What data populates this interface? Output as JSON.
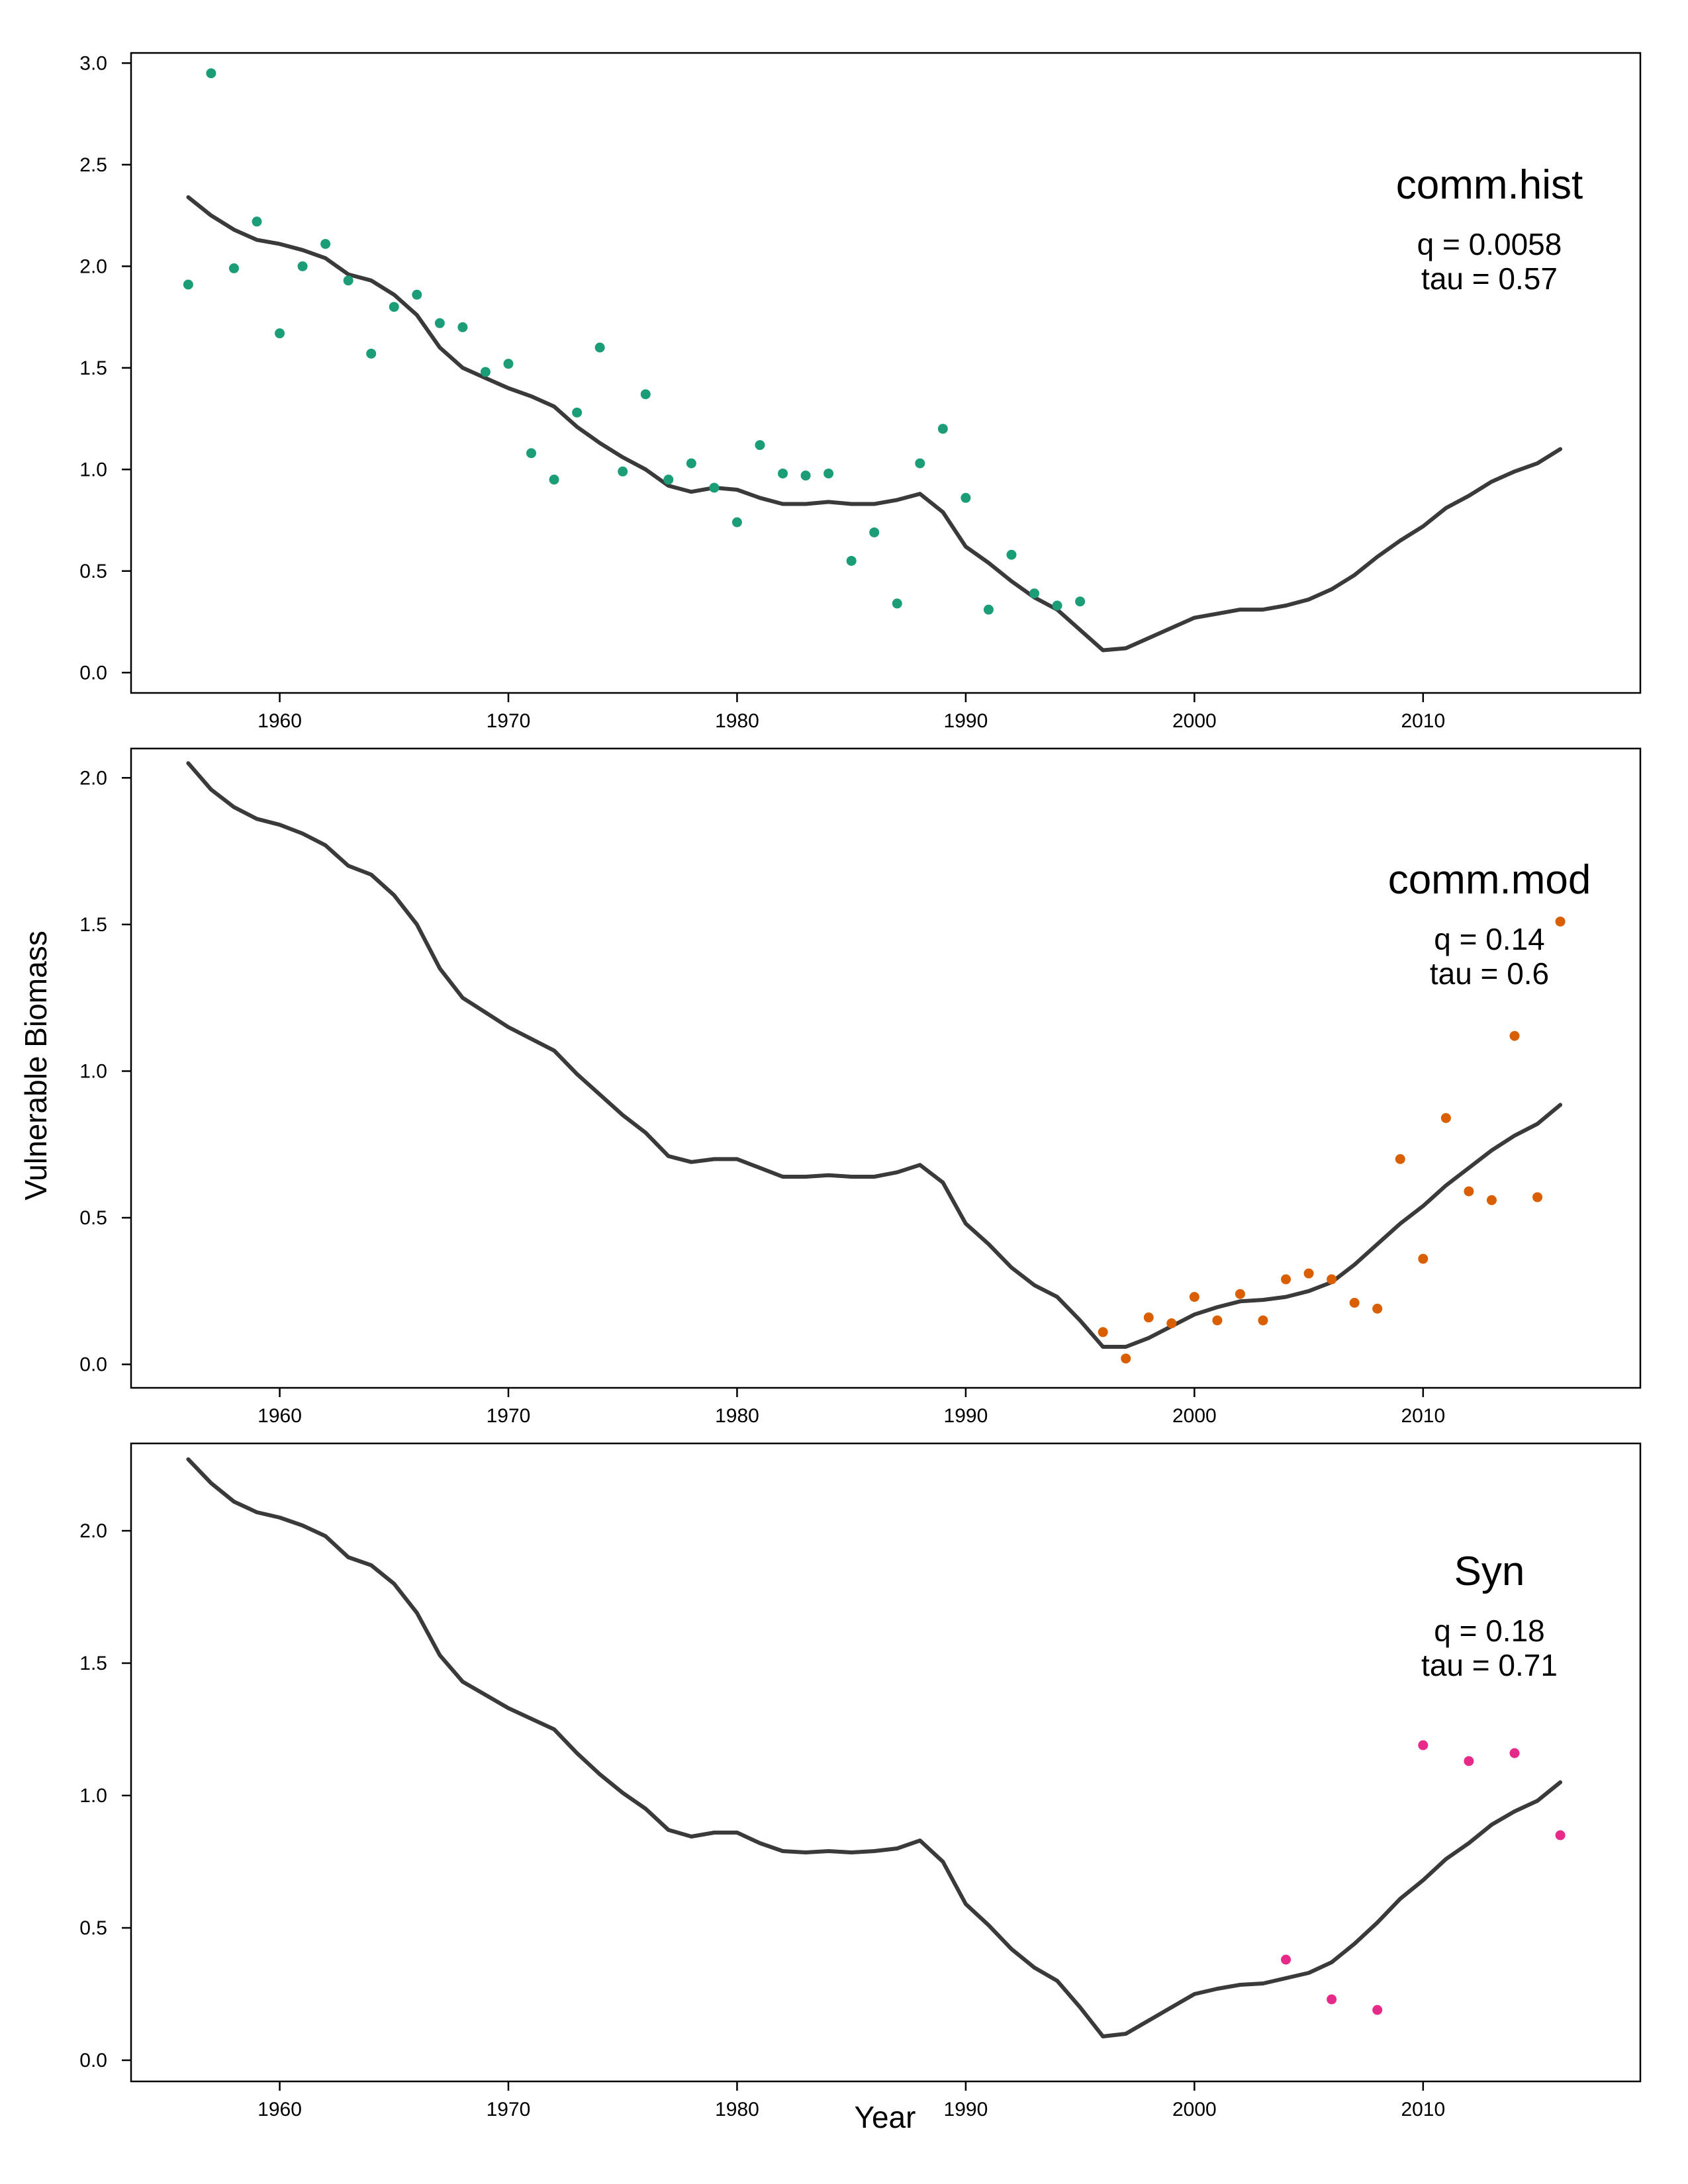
{
  "axis_titles": {
    "xlabel": "Year",
    "ylabel": "Vulnerable Biomass"
  },
  "chart_data": [
    {
      "type": "line",
      "title": "comm.hist",
      "stats": [
        "q = 0.0058",
        "tau = 0.57"
      ],
      "xlim": [
        1953.5,
        2019.5
      ],
      "ylim": [
        -0.1,
        3.05
      ],
      "xticks": [
        1960,
        1970,
        1980,
        1990,
        2000,
        2010
      ],
      "yticks": [
        0.0,
        0.5,
        1.0,
        1.5,
        2.0,
        2.5,
        3.0
      ],
      "ytick_labels": [
        "0.0",
        "0.5",
        "1.0",
        "1.5",
        "2.0",
        "2.5",
        "3.0"
      ],
      "point_color": "#1b9e77",
      "line_color": "#3a3a3a",
      "line": {
        "x": [
          1956,
          1957,
          1958,
          1959,
          1960,
          1961,
          1962,
          1963,
          1964,
          1965,
          1966,
          1967,
          1968,
          1969,
          1970,
          1971,
          1972,
          1973,
          1974,
          1975,
          1976,
          1977,
          1978,
          1979,
          1980,
          1981,
          1982,
          1983,
          1984,
          1985,
          1986,
          1987,
          1988,
          1989,
          1990,
          1991,
          1992,
          1993,
          1994,
          1995,
          1996,
          1997,
          1998,
          1999,
          2000,
          2001,
          2002,
          2003,
          2004,
          2005,
          2006,
          2007,
          2008,
          2009,
          2010,
          2011,
          2012,
          2013,
          2014,
          2015,
          2016
        ],
        "y": [
          2.34,
          2.25,
          2.18,
          2.13,
          2.11,
          2.08,
          2.04,
          1.96,
          1.93,
          1.86,
          1.76,
          1.6,
          1.5,
          1.45,
          1.4,
          1.36,
          1.31,
          1.21,
          1.13,
          1.06,
          1.0,
          0.92,
          0.89,
          0.91,
          0.9,
          0.86,
          0.83,
          0.83,
          0.84,
          0.83,
          0.83,
          0.85,
          0.88,
          0.79,
          0.62,
          0.54,
          0.45,
          0.37,
          0.31,
          0.21,
          0.11,
          0.12,
          0.17,
          0.22,
          0.27,
          0.29,
          0.31,
          0.31,
          0.33,
          0.36,
          0.41,
          0.48,
          0.57,
          0.65,
          0.72,
          0.81,
          0.87,
          0.94,
          0.99,
          1.03,
          1.1
        ]
      },
      "points": {
        "x": [
          1956,
          1957,
          1958,
          1959,
          1960,
          1961,
          1962,
          1963,
          1964,
          1965,
          1966,
          1967,
          1968,
          1969,
          1970,
          1971,
          1972,
          1973,
          1974,
          1975,
          1976,
          1977,
          1978,
          1979,
          1980,
          1981,
          1982,
          1983,
          1984,
          1985,
          1986,
          1987,
          1988,
          1989,
          1990,
          1991,
          1992,
          1993,
          1994,
          1995
        ],
        "y": [
          1.91,
          2.95,
          1.99,
          2.22,
          1.67,
          2.0,
          2.11,
          1.93,
          1.57,
          1.8,
          1.86,
          1.72,
          1.7,
          1.48,
          1.52,
          1.08,
          0.95,
          1.28,
          1.6,
          0.99,
          1.37,
          0.95,
          1.03,
          0.91,
          0.74,
          1.12,
          0.98,
          0.97,
          0.98,
          0.55,
          0.69,
          0.34,
          1.03,
          1.2,
          0.86,
          0.31,
          0.58,
          0.39,
          0.33,
          0.35
        ]
      }
    },
    {
      "type": "line",
      "title": "comm.mod",
      "stats": [
        "q = 0.14",
        "tau = 0.6"
      ],
      "xlim": [
        1953.5,
        2019.5
      ],
      "ylim": [
        -0.08,
        2.1
      ],
      "xticks": [
        1960,
        1970,
        1980,
        1990,
        2000,
        2010
      ],
      "yticks": [
        0.0,
        0.5,
        1.0,
        1.5,
        2.0
      ],
      "ytick_labels": [
        "0.0",
        "0.5",
        "1.0",
        "1.5",
        "2.0"
      ],
      "point_color": "#d95f02",
      "line_color": "#3a3a3a",
      "line": {
        "x": [
          1956,
          1957,
          1958,
          1959,
          1960,
          1961,
          1962,
          1963,
          1964,
          1965,
          1966,
          1967,
          1968,
          1969,
          1970,
          1971,
          1972,
          1973,
          1974,
          1975,
          1976,
          1977,
          1978,
          1979,
          1980,
          1981,
          1982,
          1983,
          1984,
          1985,
          1986,
          1987,
          1988,
          1989,
          1990,
          1991,
          1992,
          1993,
          1994,
          1995,
          1996,
          1997,
          1998,
          1999,
          2000,
          2001,
          2002,
          2003,
          2004,
          2005,
          2006,
          2007,
          2008,
          2009,
          2010,
          2011,
          2012,
          2013,
          2014,
          2015,
          2016
        ],
        "y": [
          2.05,
          1.96,
          1.9,
          1.86,
          1.84,
          1.81,
          1.77,
          1.7,
          1.67,
          1.6,
          1.5,
          1.35,
          1.25,
          1.2,
          1.15,
          1.11,
          1.07,
          0.99,
          0.92,
          0.85,
          0.79,
          0.71,
          0.69,
          0.7,
          0.7,
          0.67,
          0.64,
          0.64,
          0.645,
          0.64,
          0.64,
          0.655,
          0.68,
          0.62,
          0.48,
          0.41,
          0.33,
          0.27,
          0.23,
          0.15,
          0.06,
          0.06,
          0.09,
          0.13,
          0.17,
          0.195,
          0.215,
          0.22,
          0.23,
          0.25,
          0.28,
          0.34,
          0.41,
          0.48,
          0.54,
          0.61,
          0.67,
          0.73,
          0.78,
          0.82,
          0.885
        ]
      },
      "points": {
        "x": [
          1996,
          1997,
          1998,
          1999,
          2000,
          2001,
          2002,
          2003,
          2004,
          2005,
          2006,
          2007,
          2008,
          2009,
          2010,
          2011,
          2012,
          2013,
          2014,
          2015,
          2016
        ],
        "y": [
          0.11,
          0.02,
          0.16,
          0.14,
          0.23,
          0.15,
          0.24,
          0.15,
          0.29,
          0.31,
          0.29,
          0.21,
          0.19,
          0.7,
          0.36,
          0.84,
          0.59,
          0.56,
          1.12,
          0.57,
          1.51
        ]
      }
    },
    {
      "type": "line",
      "title": "Syn",
      "stats": [
        "q = 0.18",
        "tau = 0.71"
      ],
      "xlim": [
        1953.5,
        2019.5
      ],
      "ylim": [
        -0.08,
        2.33
      ],
      "xticks": [
        1960,
        1970,
        1980,
        1990,
        2000,
        2010
      ],
      "yticks": [
        0.0,
        0.5,
        1.0,
        1.5,
        2.0
      ],
      "ytick_labels": [
        "0.0",
        "0.5",
        "1.0",
        "1.5",
        "2.0"
      ],
      "point_color": "#e7298a",
      "line_color": "#3a3a3a",
      "line": {
        "x": [
          1956,
          1957,
          1958,
          1959,
          1960,
          1961,
          1962,
          1963,
          1964,
          1965,
          1966,
          1967,
          1968,
          1969,
          1970,
          1971,
          1972,
          1973,
          1974,
          1975,
          1976,
          1977,
          1978,
          1979,
          1980,
          1981,
          1982,
          1983,
          1984,
          1985,
          1986,
          1987,
          1988,
          1989,
          1990,
          1991,
          1992,
          1993,
          1994,
          1995,
          1996,
          1997,
          1998,
          1999,
          2000,
          2001,
          2002,
          2003,
          2004,
          2005,
          2006,
          2007,
          2008,
          2009,
          2010,
          2011,
          2012,
          2013,
          2014,
          2015,
          2016
        ],
        "y": [
          2.27,
          2.18,
          2.11,
          2.07,
          2.05,
          2.02,
          1.98,
          1.9,
          1.87,
          1.8,
          1.69,
          1.53,
          1.43,
          1.38,
          1.33,
          1.29,
          1.25,
          1.16,
          1.08,
          1.01,
          0.95,
          0.87,
          0.845,
          0.86,
          0.86,
          0.82,
          0.79,
          0.785,
          0.79,
          0.785,
          0.79,
          0.8,
          0.83,
          0.75,
          0.59,
          0.51,
          0.42,
          0.35,
          0.3,
          0.2,
          0.09,
          0.1,
          0.15,
          0.2,
          0.25,
          0.27,
          0.285,
          0.29,
          0.31,
          0.33,
          0.37,
          0.44,
          0.52,
          0.61,
          0.68,
          0.76,
          0.82,
          0.89,
          0.94,
          0.98,
          1.05
        ]
      },
      "points": {
        "x": [
          2004,
          2006,
          2008,
          2010,
          2012,
          2014,
          2016
        ],
        "y": [
          0.38,
          0.23,
          0.19,
          1.19,
          1.13,
          1.16,
          0.85
        ]
      }
    }
  ]
}
